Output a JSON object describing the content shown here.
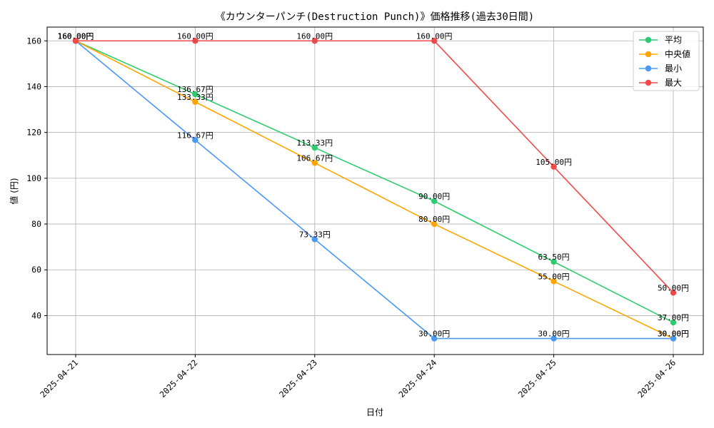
{
  "chart_data": {
    "type": "line",
    "title": "《カウンターパンチ(Destruction Punch)》価格推移(過去30日間)",
    "xlabel": "日付",
    "ylabel": "値 (円)",
    "categories": [
      "2025-04-21",
      "2025-04-22",
      "2025-04-23",
      "2025-04-24",
      "2025-04-25",
      "2025-04-26"
    ],
    "ylim": [
      23,
      166
    ],
    "yticks": [
      40,
      60,
      80,
      100,
      120,
      140,
      160
    ],
    "grid": true,
    "legend_position": "top-right",
    "series": [
      {
        "name": "平均",
        "color": "#2ecc71",
        "values": [
          160.0,
          136.67,
          113.33,
          90.0,
          63.5,
          37.0
        ],
        "labels": [
          "160.00円",
          "136.67円",
          "113.33円",
          "90.00円",
          "63.50円",
          "37.00円"
        ]
      },
      {
        "name": "中央値",
        "color": "#ffa500",
        "values": [
          160.0,
          133.33,
          106.67,
          80.0,
          55.0,
          30.0
        ],
        "labels": [
          "160.00円",
          "133.33円",
          "106.67円",
          "80.00円",
          "55.00円",
          "30.00円"
        ]
      },
      {
        "name": "最小",
        "color": "#4a9af5",
        "values": [
          160.0,
          116.67,
          73.33,
          30.0,
          30.0,
          30.0
        ],
        "labels": [
          "160.00円",
          "116.67円",
          "73.33円",
          "30.00円",
          "30.00円",
          "30.00円"
        ]
      },
      {
        "name": "最大",
        "color": "#f04a4a",
        "values": [
          160.0,
          160.0,
          160.0,
          160.0,
          105.0,
          50.0
        ],
        "labels": [
          "160.00円",
          "160.00円",
          "160.00円",
          "160.00円",
          "105.00円",
          "50.00円"
        ]
      }
    ]
  }
}
